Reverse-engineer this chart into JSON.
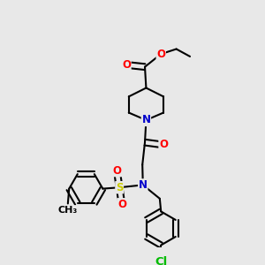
{
  "bg_color": "#e8e8e8",
  "bond_color": "#000000",
  "bond_width": 1.5,
  "dbo": 0.012,
  "atom_colors": {
    "O": "#ff0000",
    "N": "#0000cc",
    "S": "#cccc00",
    "Cl": "#00bb00",
    "C": "#000000"
  },
  "fs": 8.5
}
